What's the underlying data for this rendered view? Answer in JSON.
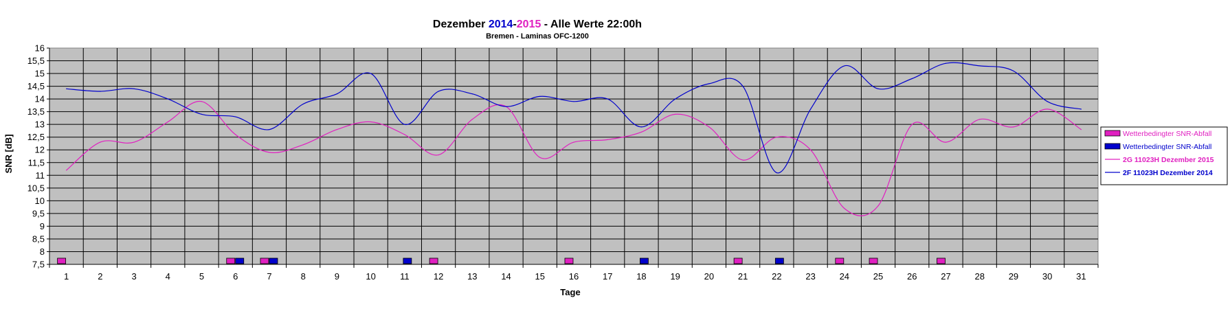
{
  "chart_data": {
    "type": "line",
    "title_parts": [
      {
        "text": "Dezember ",
        "color": "#000000"
      },
      {
        "text": "2014",
        "color": "#0000cc"
      },
      {
        "text": "-",
        "color": "#000000"
      },
      {
        "text": "2015",
        "color": "#e020c0"
      },
      {
        "text": " - Alle Werte 22:00h",
        "color": "#000000"
      }
    ],
    "subtitle": "Bremen - Laminas OFC-1200",
    "xlabel": "Tage",
    "ylabel": "SNR [dB]",
    "ylim": [
      7.5,
      16
    ],
    "yticks": [
      "7,5",
      "8",
      "8,5",
      "9",
      "9,5",
      "10",
      "10,5",
      "11",
      "11,5",
      "12",
      "12,5",
      "13",
      "13,5",
      "14",
      "14,5",
      "15",
      "15,5",
      "16"
    ],
    "x": [
      1,
      2,
      3,
      4,
      5,
      6,
      7,
      8,
      9,
      10,
      11,
      12,
      13,
      14,
      15,
      16,
      17,
      18,
      19,
      20,
      21,
      22,
      23,
      24,
      25,
      26,
      27,
      28,
      29,
      30,
      31
    ],
    "grid": true,
    "plot_background": "#c0c0c0",
    "legend_position": "right",
    "series": [
      {
        "name": "2G 11023H Dezember 2015",
        "color": "#e020c0",
        "kind": "line",
        "values": [
          11.2,
          12.3,
          12.3,
          13.1,
          13.9,
          12.6,
          11.9,
          12.2,
          12.8,
          13.1,
          12.6,
          11.8,
          13.2,
          13.7,
          11.7,
          12.3,
          12.4,
          12.7,
          13.4,
          12.9,
          11.6,
          12.5,
          12.0,
          9.7,
          9.8,
          13.0,
          12.3,
          13.2,
          12.9,
          13.6,
          12.8
        ]
      },
      {
        "name": "2F 11023H Dezember 2014",
        "color": "#0000cc",
        "kind": "line",
        "values": [
          14.4,
          14.3,
          14.4,
          14.0,
          13.4,
          13.3,
          12.8,
          13.8,
          14.2,
          15.0,
          13.0,
          14.3,
          14.2,
          13.7,
          14.1,
          13.9,
          14.0,
          12.9,
          14.0,
          14.6,
          14.5,
          11.1,
          13.6,
          15.3,
          14.4,
          14.8,
          15.4,
          15.3,
          15.1,
          13.9,
          13.6
        ]
      },
      {
        "name": "Wetterbedingter SNR-Abfall",
        "color": "#e020c0",
        "kind": "marker",
        "days": [
          1,
          6,
          7,
          12,
          16,
          21,
          24,
          25,
          27
        ]
      },
      {
        "name": "Wetterbedingter SNR-Abfall",
        "color": "#0000cc",
        "kind": "marker",
        "days": [
          6,
          7,
          11,
          18,
          22
        ]
      }
    ],
    "legend": [
      {
        "label": "Wetterbedingter SNR-Abfall",
        "type": "box",
        "color": "#e020c0",
        "bold": false
      },
      {
        "label": "Wetterbedingter SNR-Abfall",
        "type": "box",
        "color": "#0000cc",
        "bold": false
      },
      {
        "label": "2G 11023H Dezember 2015",
        "type": "line",
        "color": "#e020c0",
        "bold": true
      },
      {
        "label": "2F 11023H Dezember 2014",
        "type": "line",
        "color": "#0000cc",
        "bold": true
      }
    ]
  }
}
